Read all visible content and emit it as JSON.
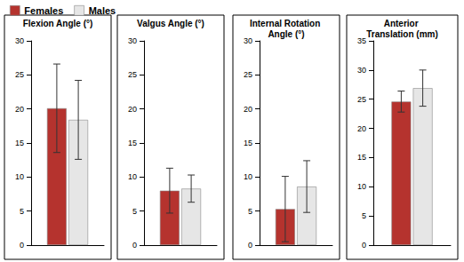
{
  "chart_data": [
    {
      "type": "bar",
      "title": "Flexion Angle (°)",
      "series": [
        {
          "name": "Females",
          "color": "#b5332e",
          "values": [
            20.1
          ],
          "errors": [
            6.5
          ]
        },
        {
          "name": "Males",
          "color": "#e6e6e6",
          "values": [
            18.4
          ],
          "errors": [
            5.8
          ]
        }
      ],
      "ylim": [
        0,
        30
      ],
      "yticks": [
        0,
        5,
        10,
        15,
        20,
        25,
        30
      ],
      "grid": false,
      "legend": "top-left",
      "tick_labels": "y"
    },
    {
      "type": "bar",
      "title": "Valgus Angle (°)",
      "series": [
        {
          "name": "Females",
          "color": "#b5332e",
          "values": [
            8.0
          ],
          "errors": [
            3.3
          ]
        },
        {
          "name": "Males",
          "color": "#e6e6e6",
          "values": [
            8.3
          ],
          "errors": [
            2.0
          ]
        }
      ],
      "ylim": [
        0,
        30
      ],
      "yticks": [
        0,
        5,
        10,
        15,
        20,
        25,
        30
      ],
      "grid": false,
      "tick_labels": "y"
    },
    {
      "type": "bar",
      "title": "Internal Rotation Angle (°)",
      "series": [
        {
          "name": "Females",
          "color": "#b5332e",
          "values": [
            5.3
          ],
          "errors": [
            4.8
          ]
        },
        {
          "name": "Males",
          "color": "#e6e6e6",
          "values": [
            8.6
          ],
          "errors": [
            3.8
          ]
        }
      ],
      "ylim": [
        0,
        30
      ],
      "yticks": [
        0,
        5,
        10,
        15,
        20,
        25,
        30
      ],
      "grid": false,
      "tick_labels": "y"
    },
    {
      "type": "bar",
      "title": "Anterior Translation (mm)",
      "series": [
        {
          "name": "Females",
          "color": "#b5332e",
          "values": [
            24.6
          ],
          "errors": [
            1.8
          ]
        },
        {
          "name": "Males",
          "color": "#e6e6e6",
          "values": [
            26.9
          ],
          "errors": [
            3.1
          ]
        }
      ],
      "ylim": [
        0,
        35
      ],
      "yticks": [
        0,
        5,
        10,
        15,
        20,
        25,
        30,
        35
      ],
      "grid": false,
      "tick_labels": "y"
    }
  ]
}
